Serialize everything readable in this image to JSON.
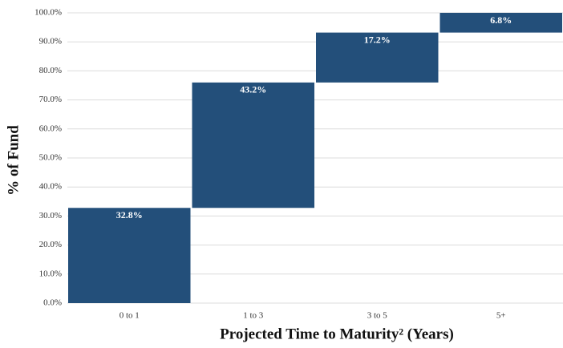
{
  "chart_data": {
    "type": "waterfall",
    "x_label": "Projected Time to Maturity² (Years)",
    "y_label": "% of Fund",
    "categories": [
      "0 to 1",
      "1 to 3",
      "3 to 5",
      "5+"
    ],
    "values": [
      32.8,
      43.2,
      17.2,
      6.8
    ],
    "value_labels": [
      "32.8%",
      "43.2%",
      "17.2%",
      "6.8%"
    ],
    "color": "#234f7a",
    "ylim": [
      0,
      100
    ],
    "yticks": [
      {
        "value": 0,
        "label": "0.0%"
      },
      {
        "value": 10,
        "label": "10.0%"
      },
      {
        "value": 20,
        "label": "20.0%"
      },
      {
        "value": 30,
        "label": "30.0%"
      },
      {
        "value": 40,
        "label": "40.0%"
      },
      {
        "value": 50,
        "label": "50.0%"
      },
      {
        "value": 60,
        "label": "60.0%"
      },
      {
        "value": 70,
        "label": "70.0%"
      },
      {
        "value": 80,
        "label": "80.0%"
      },
      {
        "value": 90,
        "label": "90.0%"
      },
      {
        "value": 100,
        "label": "100.0%"
      }
    ],
    "grid": true
  }
}
